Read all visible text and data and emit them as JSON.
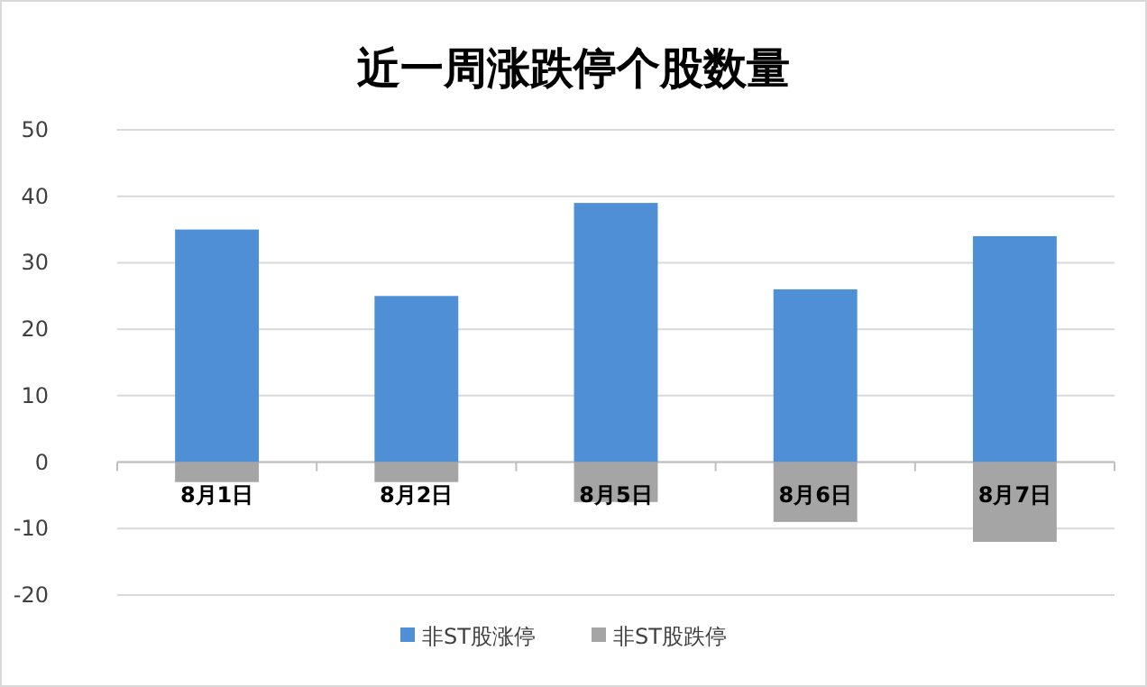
{
  "chart_data": {
    "type": "bar",
    "title": "近一周涨跌停个股数量",
    "categories": [
      "8月1日",
      "8月2日",
      "8月5日",
      "8月6日",
      "8月7日"
    ],
    "stacked": true,
    "series": [
      {
        "name": "非ST股涨停",
        "color": "#4f8fd6",
        "values": [
          35,
          25,
          39,
          26,
          34
        ]
      },
      {
        "name": "非ST股跌停",
        "color": "#a5a5a5",
        "values": [
          -3,
          -3,
          -6,
          -9,
          -12
        ]
      }
    ],
    "ylim": [
      -20,
      50
    ],
    "yticks": [
      -20,
      -10,
      0,
      10,
      20,
      30,
      40,
      50
    ],
    "grid": "y",
    "legend": "bottom"
  }
}
